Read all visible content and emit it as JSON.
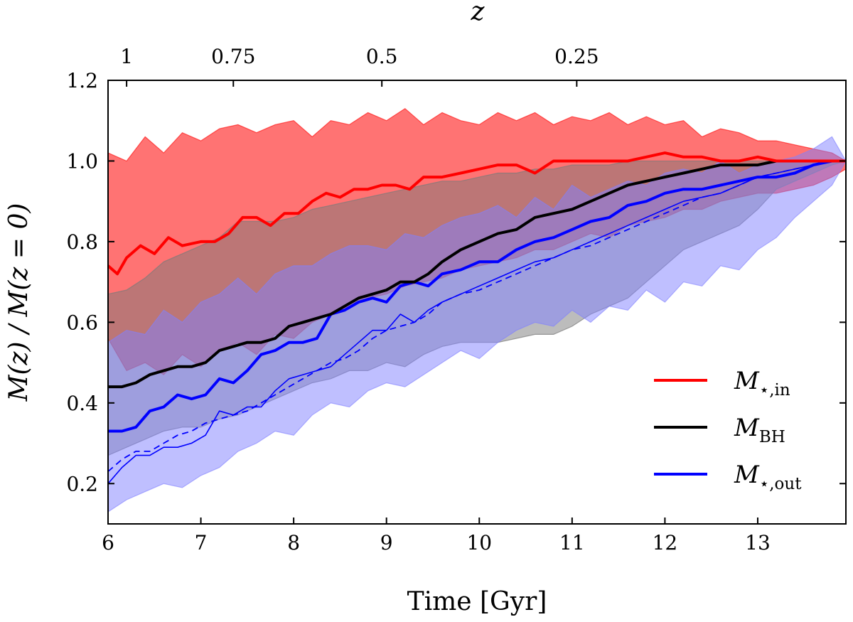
{
  "chart_data": {
    "type": "line",
    "xlabel": "Time [Gyr]",
    "ylabel": "M(z) / M(z = 0)",
    "top_xlabel": "z",
    "xlim": [
      6,
      13.95
    ],
    "ylim": [
      0.1,
      1.2
    ],
    "x_ticks": [
      6,
      7,
      8,
      9,
      10,
      11,
      12,
      13
    ],
    "y_ticks": [
      0.2,
      0.4,
      0.6,
      0.8,
      1.0,
      1.2
    ],
    "top_ticks": [
      {
        "label": "1",
        "time": 6.2
      },
      {
        "label": "0.75",
        "time": 7.35
      },
      {
        "label": "0.5",
        "time": 8.95
      },
      {
        "label": "0.25",
        "time": 11.05
      }
    ],
    "legend": {
      "position": "lower-right",
      "entries": [
        {
          "main": "M",
          "sub": "⋆,in",
          "color": "#ff0000"
        },
        {
          "main": "M",
          "sub": "BH",
          "color": "#000000"
        },
        {
          "main": "M",
          "sub": "⋆,out",
          "color": "#0000ff"
        }
      ]
    },
    "colors": {
      "in": "#ff0000",
      "bh": "#000000",
      "out": "#0000ff",
      "in_band": "#ff8a8a",
      "bh_band": "#7a7a7a",
      "out_band": "#8080ff"
    },
    "series": [
      {
        "key": "in_band_upper",
        "x": [
          6.0,
          6.2,
          6.4,
          6.6,
          6.8,
          7.0,
          7.2,
          7.4,
          7.6,
          7.8,
          8.0,
          8.2,
          8.4,
          8.6,
          8.8,
          9.0,
          9.2,
          9.4,
          9.6,
          9.8,
          10.0,
          10.2,
          10.4,
          10.6,
          10.8,
          11.0,
          11.2,
          11.4,
          11.6,
          11.8,
          12.0,
          12.2,
          12.4,
          12.6,
          12.8,
          13.0,
          13.2,
          13.4,
          13.6,
          13.8,
          13.95
        ],
        "y": [
          1.02,
          1.0,
          1.06,
          1.02,
          1.07,
          1.05,
          1.08,
          1.09,
          1.07,
          1.09,
          1.1,
          1.06,
          1.1,
          1.09,
          1.12,
          1.1,
          1.13,
          1.09,
          1.12,
          1.1,
          1.09,
          1.12,
          1.1,
          1.12,
          1.09,
          1.11,
          1.1,
          1.12,
          1.09,
          1.11,
          1.09,
          1.1,
          1.06,
          1.08,
          1.07,
          1.05,
          1.05,
          1.04,
          1.03,
          1.02,
          1.0
        ]
      },
      {
        "key": "in_band_lower",
        "x": [
          6.0,
          6.2,
          6.4,
          6.6,
          6.8,
          7.0,
          7.2,
          7.4,
          7.6,
          7.8,
          8.0,
          8.2,
          8.4,
          8.6,
          8.8,
          9.0,
          9.2,
          9.4,
          9.6,
          9.8,
          10.0,
          10.2,
          10.4,
          10.6,
          10.8,
          11.0,
          11.2,
          11.4,
          11.6,
          11.8,
          12.0,
          12.2,
          12.4,
          12.6,
          12.8,
          13.0,
          13.2,
          13.4,
          13.6,
          13.8,
          13.95
        ],
        "y": [
          0.56,
          0.48,
          0.5,
          0.47,
          0.52,
          0.49,
          0.53,
          0.55,
          0.52,
          0.57,
          0.56,
          0.6,
          0.62,
          0.64,
          0.66,
          0.67,
          0.69,
          0.7,
          0.71,
          0.73,
          0.74,
          0.75,
          0.76,
          0.78,
          0.78,
          0.8,
          0.82,
          0.81,
          0.84,
          0.85,
          0.86,
          0.88,
          0.88,
          0.9,
          0.91,
          0.92,
          0.92,
          0.93,
          0.94,
          0.96,
          0.98
        ]
      },
      {
        "key": "bh_band_upper",
        "x": [
          6.0,
          6.2,
          6.4,
          6.6,
          6.8,
          7.0,
          7.2,
          7.4,
          7.6,
          7.8,
          8.0,
          8.2,
          8.4,
          8.6,
          8.8,
          9.0,
          9.2,
          9.4,
          9.6,
          9.8,
          10.0,
          10.2,
          10.4,
          10.6,
          10.8,
          11.0,
          11.2,
          11.4,
          11.6,
          11.8,
          12.0,
          12.2,
          12.4,
          12.6,
          12.8,
          13.0,
          13.2,
          13.4,
          13.6,
          13.8,
          13.95
        ],
        "y": [
          0.67,
          0.68,
          0.71,
          0.75,
          0.77,
          0.79,
          0.81,
          0.85,
          0.85,
          0.85,
          0.86,
          0.88,
          0.89,
          0.9,
          0.91,
          0.92,
          0.93,
          0.94,
          0.95,
          0.95,
          0.96,
          0.97,
          0.97,
          0.98,
          0.98,
          0.99,
          0.99,
          0.99,
          1.0,
          1.0,
          1.0,
          1.0,
          1.0,
          1.0,
          1.0,
          1.0,
          1.0,
          1.0,
          1.0,
          1.0,
          1.0
        ]
      },
      {
        "key": "bh_band_lower",
        "x": [
          6.0,
          6.2,
          6.4,
          6.6,
          6.8,
          7.0,
          7.2,
          7.4,
          7.6,
          7.8,
          8.0,
          8.2,
          8.4,
          8.6,
          8.8,
          9.0,
          9.2,
          9.4,
          9.6,
          9.8,
          10.0,
          10.2,
          10.4,
          10.6,
          10.8,
          11.0,
          11.2,
          11.4,
          11.6,
          11.8,
          12.0,
          12.2,
          12.4,
          12.6,
          12.8,
          13.0,
          13.2,
          13.4,
          13.6,
          13.8,
          13.95
        ],
        "y": [
          0.27,
          0.29,
          0.31,
          0.33,
          0.34,
          0.34,
          0.36,
          0.37,
          0.39,
          0.41,
          0.43,
          0.45,
          0.46,
          0.48,
          0.48,
          0.5,
          0.49,
          0.52,
          0.54,
          0.55,
          0.55,
          0.55,
          0.56,
          0.57,
          0.57,
          0.59,
          0.62,
          0.64,
          0.66,
          0.7,
          0.74,
          0.78,
          0.8,
          0.82,
          0.84,
          0.88,
          0.93,
          0.95,
          0.97,
          0.99,
          1.0
        ]
      },
      {
        "key": "out_band_upper",
        "x": [
          6.0,
          6.2,
          6.4,
          6.6,
          6.8,
          7.0,
          7.2,
          7.4,
          7.6,
          7.8,
          8.0,
          8.2,
          8.4,
          8.6,
          8.8,
          9.0,
          9.2,
          9.4,
          9.6,
          9.8,
          10.0,
          10.2,
          10.4,
          10.6,
          10.8,
          11.0,
          11.2,
          11.4,
          11.6,
          11.8,
          12.0,
          12.2,
          12.4,
          12.6,
          12.8,
          13.0,
          13.2,
          13.4,
          13.6,
          13.8,
          13.95
        ],
        "y": [
          0.55,
          0.58,
          0.57,
          0.63,
          0.6,
          0.65,
          0.67,
          0.71,
          0.67,
          0.72,
          0.74,
          0.74,
          0.77,
          0.79,
          0.79,
          0.78,
          0.82,
          0.81,
          0.84,
          0.86,
          0.87,
          0.89,
          0.86,
          0.91,
          0.88,
          0.94,
          0.91,
          0.93,
          0.95,
          0.94,
          0.97,
          0.98,
          0.97,
          1.0,
          0.97,
          0.99,
          1.0,
          1.01,
          1.03,
          1.06,
          1.0
        ]
      },
      {
        "key": "out_band_lower",
        "x": [
          6.0,
          6.2,
          6.4,
          6.6,
          6.8,
          7.0,
          7.2,
          7.4,
          7.6,
          7.8,
          8.0,
          8.2,
          8.4,
          8.6,
          8.8,
          9.0,
          9.2,
          9.4,
          9.6,
          9.8,
          10.0,
          10.2,
          10.4,
          10.6,
          10.8,
          11.0,
          11.2,
          11.4,
          11.6,
          11.8,
          12.0,
          12.2,
          12.4,
          12.6,
          12.8,
          13.0,
          13.2,
          13.4,
          13.6,
          13.8,
          13.95
        ],
        "y": [
          0.13,
          0.16,
          0.18,
          0.2,
          0.19,
          0.22,
          0.24,
          0.28,
          0.3,
          0.33,
          0.32,
          0.37,
          0.4,
          0.39,
          0.43,
          0.45,
          0.44,
          0.47,
          0.5,
          0.53,
          0.51,
          0.55,
          0.58,
          0.6,
          0.59,
          0.63,
          0.6,
          0.64,
          0.63,
          0.68,
          0.65,
          0.7,
          0.69,
          0.74,
          0.73,
          0.78,
          0.81,
          0.86,
          0.9,
          0.94,
          1.0
        ]
      },
      {
        "key": "in_median",
        "name": "M⋆,in",
        "x": [
          6.0,
          6.1,
          6.2,
          6.35,
          6.5,
          6.65,
          6.8,
          7.0,
          7.15,
          7.3,
          7.45,
          7.6,
          7.75,
          7.9,
          8.05,
          8.2,
          8.35,
          8.5,
          8.65,
          8.8,
          8.95,
          9.1,
          9.25,
          9.4,
          9.6,
          9.8,
          10.0,
          10.2,
          10.4,
          10.6,
          10.8,
          11.0,
          11.2,
          11.4,
          11.6,
          11.8,
          12.0,
          12.2,
          12.4,
          12.6,
          12.8,
          13.0,
          13.2,
          13.4,
          13.6,
          13.8,
          13.95
        ],
        "y": [
          0.74,
          0.72,
          0.76,
          0.79,
          0.77,
          0.81,
          0.79,
          0.8,
          0.8,
          0.82,
          0.86,
          0.86,
          0.84,
          0.87,
          0.87,
          0.9,
          0.92,
          0.91,
          0.93,
          0.93,
          0.94,
          0.94,
          0.93,
          0.96,
          0.96,
          0.97,
          0.98,
          0.99,
          0.99,
          0.97,
          1.0,
          1.0,
          1.0,
          1.0,
          1.0,
          1.01,
          1.02,
          1.01,
          1.01,
          1.0,
          1.0,
          1.01,
          1.0,
          1.0,
          1.0,
          1.0,
          1.0
        ]
      },
      {
        "key": "bh_median",
        "name": "MBH",
        "x": [
          6.0,
          6.15,
          6.3,
          6.45,
          6.6,
          6.75,
          6.9,
          7.05,
          7.2,
          7.35,
          7.5,
          7.65,
          7.8,
          7.95,
          8.1,
          8.25,
          8.4,
          8.55,
          8.7,
          8.85,
          9.0,
          9.15,
          9.3,
          9.45,
          9.6,
          9.8,
          10.0,
          10.2,
          10.4,
          10.6,
          10.8,
          11.0,
          11.2,
          11.4,
          11.6,
          11.8,
          12.0,
          12.2,
          12.4,
          12.6,
          12.8,
          13.0,
          13.2,
          13.4,
          13.6,
          13.8,
          13.95
        ],
        "y": [
          0.44,
          0.44,
          0.45,
          0.47,
          0.48,
          0.49,
          0.49,
          0.5,
          0.53,
          0.54,
          0.55,
          0.55,
          0.56,
          0.59,
          0.6,
          0.61,
          0.62,
          0.64,
          0.66,
          0.67,
          0.68,
          0.7,
          0.7,
          0.72,
          0.75,
          0.78,
          0.8,
          0.82,
          0.83,
          0.86,
          0.87,
          0.88,
          0.9,
          0.92,
          0.94,
          0.95,
          0.96,
          0.97,
          0.98,
          0.99,
          0.99,
          0.99,
          1.0,
          1.0,
          1.0,
          1.0,
          1.0
        ]
      },
      {
        "key": "out_median",
        "name": "M⋆,out",
        "x": [
          6.0,
          6.15,
          6.3,
          6.45,
          6.6,
          6.75,
          6.9,
          7.05,
          7.2,
          7.35,
          7.5,
          7.65,
          7.8,
          7.95,
          8.1,
          8.25,
          8.4,
          8.55,
          8.7,
          8.85,
          9.0,
          9.15,
          9.3,
          9.45,
          9.6,
          9.8,
          10.0,
          10.2,
          10.4,
          10.6,
          10.8,
          11.0,
          11.2,
          11.4,
          11.6,
          11.8,
          12.0,
          12.2,
          12.4,
          12.6,
          12.8,
          13.0,
          13.2,
          13.4,
          13.6,
          13.8,
          13.95
        ],
        "y": [
          0.33,
          0.33,
          0.34,
          0.38,
          0.39,
          0.42,
          0.41,
          0.42,
          0.46,
          0.45,
          0.48,
          0.52,
          0.53,
          0.55,
          0.55,
          0.56,
          0.62,
          0.63,
          0.65,
          0.66,
          0.65,
          0.69,
          0.7,
          0.69,
          0.72,
          0.73,
          0.75,
          0.75,
          0.78,
          0.8,
          0.81,
          0.83,
          0.85,
          0.86,
          0.89,
          0.9,
          0.92,
          0.93,
          0.93,
          0.94,
          0.95,
          0.96,
          0.96,
          0.97,
          0.99,
          1.0,
          1.0
        ]
      },
      {
        "key": "out_thin",
        "x": [
          6.0,
          6.15,
          6.3,
          6.45,
          6.6,
          6.75,
          6.9,
          7.05,
          7.2,
          7.35,
          7.5,
          7.65,
          7.8,
          7.95,
          8.1,
          8.25,
          8.4,
          8.55,
          8.7,
          8.85,
          9.0,
          9.15,
          9.3,
          9.45,
          9.6,
          9.8,
          10.0,
          10.2,
          10.4,
          10.6,
          10.8,
          11.0,
          11.2,
          11.4,
          11.6,
          11.8,
          12.0,
          12.2,
          12.4,
          12.6,
          12.8,
          13.0,
          13.2,
          13.4,
          13.6,
          13.8,
          13.95
        ],
        "y": [
          0.2,
          0.24,
          0.27,
          0.27,
          0.29,
          0.29,
          0.3,
          0.32,
          0.38,
          0.37,
          0.39,
          0.39,
          0.43,
          0.46,
          0.47,
          0.48,
          0.49,
          0.52,
          0.55,
          0.58,
          0.58,
          0.62,
          0.6,
          0.63,
          0.65,
          0.67,
          0.69,
          0.71,
          0.73,
          0.75,
          0.76,
          0.78,
          0.8,
          0.82,
          0.84,
          0.86,
          0.88,
          0.9,
          0.91,
          0.92,
          0.94,
          0.96,
          0.97,
          0.98,
          0.99,
          1.0,
          1.0
        ]
      },
      {
        "key": "out_dashed",
        "x": [
          6.0,
          6.15,
          6.3,
          6.45,
          6.6,
          6.75,
          6.9,
          7.05,
          7.2,
          7.35,
          7.5,
          7.65,
          7.8,
          7.95,
          8.1,
          8.25,
          8.4,
          8.55,
          8.7,
          8.85,
          9.0,
          9.15,
          9.3,
          9.45,
          9.6,
          9.8,
          10.0,
          10.2,
          10.4,
          10.6,
          10.8,
          11.0,
          11.2,
          11.4,
          11.6,
          11.8,
          12.0,
          12.2,
          12.4,
          12.6,
          12.8,
          13.0,
          13.2,
          13.4,
          13.6,
          13.8,
          13.95
        ],
        "y": [
          0.23,
          0.26,
          0.28,
          0.28,
          0.3,
          0.32,
          0.33,
          0.35,
          0.36,
          0.37,
          0.38,
          0.4,
          0.42,
          0.44,
          0.46,
          0.48,
          0.5,
          0.51,
          0.53,
          0.56,
          0.58,
          0.59,
          0.6,
          0.62,
          0.65,
          0.67,
          0.68,
          0.7,
          0.72,
          0.74,
          0.76,
          0.78,
          0.79,
          0.81,
          0.83,
          0.85,
          0.87,
          0.89,
          0.91,
          0.92,
          0.94,
          0.96,
          0.97,
          0.98,
          0.99,
          1.0,
          1.0
        ]
      }
    ]
  }
}
